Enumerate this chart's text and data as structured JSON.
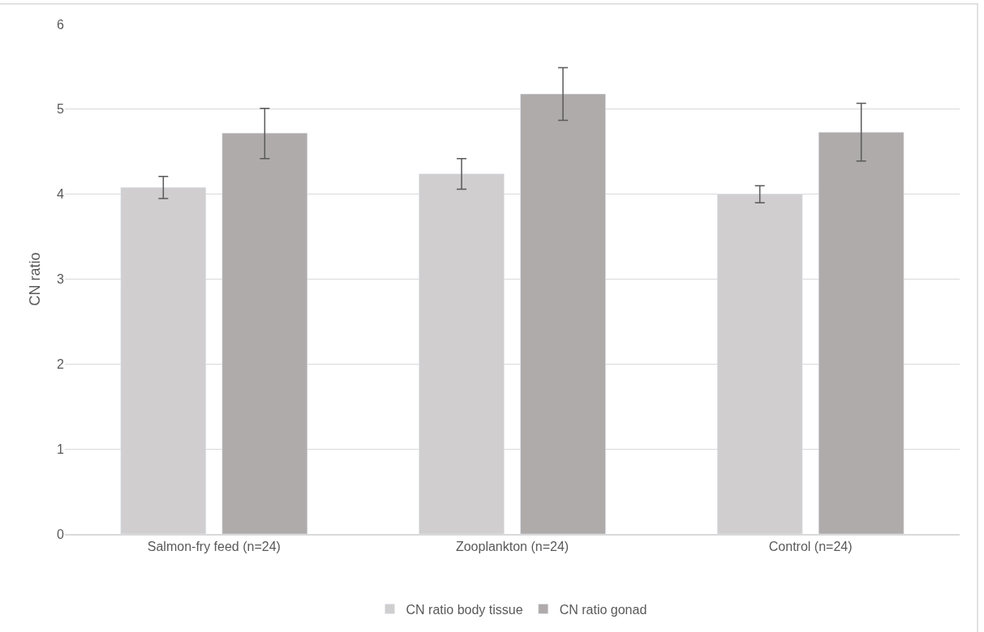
{
  "chart_data": {
    "type": "bar",
    "ylabel": "CN ratio",
    "categories": [
      "Salmon-fry feed (n=24)",
      "Zooplankton (n=24)",
      "Control (n=24)"
    ],
    "series": [
      {
        "name": "CN ratio body tissue",
        "color": "#d0cecf",
        "values": [
          4.08,
          4.24,
          4.0
        ],
        "errors": [
          [
            3.95,
            4.21
          ],
          [
            4.06,
            4.42
          ],
          [
            3.9,
            4.1
          ]
        ]
      },
      {
        "name": "CN ratio gonad",
        "color": "#afabab",
        "values": [
          4.72,
          5.18,
          4.73
        ],
        "errors": [
          [
            4.42,
            5.01
          ],
          [
            4.87,
            5.49
          ],
          [
            4.39,
            5.07
          ]
        ]
      }
    ],
    "ylim": [
      0,
      6
    ],
    "yticks": [
      0,
      1,
      2,
      3,
      4,
      5,
      6
    ],
    "grid": "y",
    "legend": "bottom"
  }
}
